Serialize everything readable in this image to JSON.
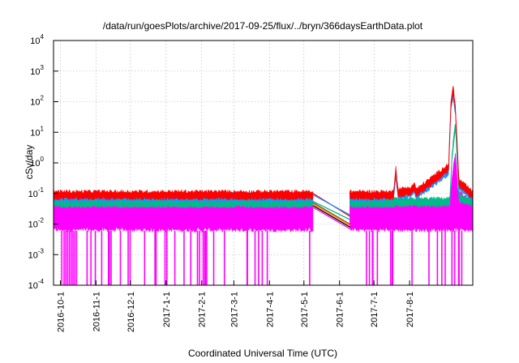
{
  "chart_data": {
    "type": "line",
    "title": "/data/run/goesPlots/archive/2017-09-25/flux/../bryn/366daysEarthData.plot",
    "xlabel": "Coordinated Universal Time (UTC)",
    "ylabel": "cSv/day",
    "yscale": "log",
    "ylim": [
      0.0001,
      10000
    ],
    "xlim": [
      "2016-09-25",
      "2017-09-25"
    ],
    "grid": true,
    "x_ticks": [
      "2016-10-1",
      "2016-11-1",
      "2016-12-1",
      "2017-1-1",
      "2017-2-1",
      "2017-3-1",
      "2017-4-1",
      "2017-5-1",
      "2017-6-1",
      "2017-7-1",
      "2017-8-1"
    ],
    "y_ticks": [
      {
        "value": 0.0001,
        "base": "10",
        "exp": "-4"
      },
      {
        "value": 0.001,
        "base": "10",
        "exp": "-3"
      },
      {
        "value": 0.01,
        "base": "10",
        "exp": "-2"
      },
      {
        "value": 0.1,
        "base": "10",
        "exp": "-1"
      },
      {
        "value": 1,
        "base": "10",
        "exp": "0"
      },
      {
        "value": 10,
        "base": "10",
        "exp": "1"
      },
      {
        "value": 100,
        "base": "10",
        "exp": "2"
      },
      {
        "value": 1000,
        "base": "10",
        "exp": "3"
      },
      {
        "value": 10000,
        "base": "10",
        "exp": "4"
      }
    ],
    "data_gap": [
      "2017-05-09",
      "2017-06-10"
    ],
    "series": [
      {
        "color": "#ff00ff",
        "points": [
          [
            "2016-09-25",
            0.045
          ],
          [
            "2017-05-08",
            0.045
          ],
          [
            "2017-06-11",
            0.045
          ],
          [
            "2017-07-19",
            0.05
          ],
          [
            "2017-09-05",
            0.05
          ],
          [
            "2017-09-07",
            0.3
          ],
          [
            "2017-09-10",
            2.0
          ],
          [
            "2017-09-12",
            0.1
          ],
          [
            "2017-09-25",
            0.05
          ]
        ]
      },
      {
        "color": "#00bb88",
        "points": [
          [
            "2016-09-25",
            0.055
          ],
          [
            "2017-05-08",
            0.055
          ],
          [
            "2017-06-11",
            0.055
          ],
          [
            "2017-09-05",
            0.06
          ],
          [
            "2017-09-07",
            2.0
          ],
          [
            "2017-09-10",
            20
          ],
          [
            "2017-09-13",
            0.08
          ],
          [
            "2017-09-25",
            0.06
          ]
        ]
      },
      {
        "color": "#1e90ff",
        "points": [
          [
            "2016-09-25",
            0.085
          ],
          [
            "2017-05-08",
            0.085
          ],
          [
            "2017-06-11",
            0.085
          ],
          [
            "2017-07-18",
            0.09
          ],
          [
            "2017-07-20",
            0.5
          ],
          [
            "2017-07-22",
            0.1
          ],
          [
            "2017-08-03",
            0.12
          ],
          [
            "2017-08-05",
            0.15
          ],
          [
            "2017-08-07",
            0.1
          ],
          [
            "2017-09-04",
            0.6
          ],
          [
            "2017-09-06",
            80
          ],
          [
            "2017-09-08",
            200
          ],
          [
            "2017-09-10",
            50
          ],
          [
            "2017-09-13",
            0.2
          ],
          [
            "2017-09-25",
            0.09
          ]
        ]
      },
      {
        "color": "#ff0000",
        "points": [
          [
            "2016-09-25",
            0.1
          ],
          [
            "2017-05-08",
            0.1
          ],
          [
            "2017-06-11",
            0.1
          ],
          [
            "2017-07-18",
            0.1
          ],
          [
            "2017-07-20",
            0.7
          ],
          [
            "2017-07-22",
            0.12
          ],
          [
            "2017-08-03",
            0.14
          ],
          [
            "2017-08-05",
            0.2
          ],
          [
            "2017-08-07",
            0.12
          ],
          [
            "2017-09-04",
            0.8
          ],
          [
            "2017-09-06",
            100
          ],
          [
            "2017-09-08",
            280
          ],
          [
            "2017-09-10",
            60
          ],
          [
            "2017-09-13",
            0.25
          ],
          [
            "2017-09-25",
            0.1
          ]
        ]
      }
    ],
    "gap_connectors": [
      {
        "color": "#ff0000",
        "from": 0.1,
        "to": 0.018
      },
      {
        "color": "#1e90ff",
        "from": 0.09,
        "to": 0.02
      },
      {
        "color": "#00bb88",
        "from": 0.055,
        "to": 0.014
      },
      {
        "color": "#8b4513",
        "from": 0.05,
        "to": 0.01
      },
      {
        "color": "#ff8c00",
        "from": 0.045,
        "to": 0.009
      },
      {
        "color": "#000000",
        "from": 0.04,
        "to": 0.008
      },
      {
        "color": "#ff00ff",
        "from": 0.035,
        "to": 0.007
      }
    ]
  }
}
